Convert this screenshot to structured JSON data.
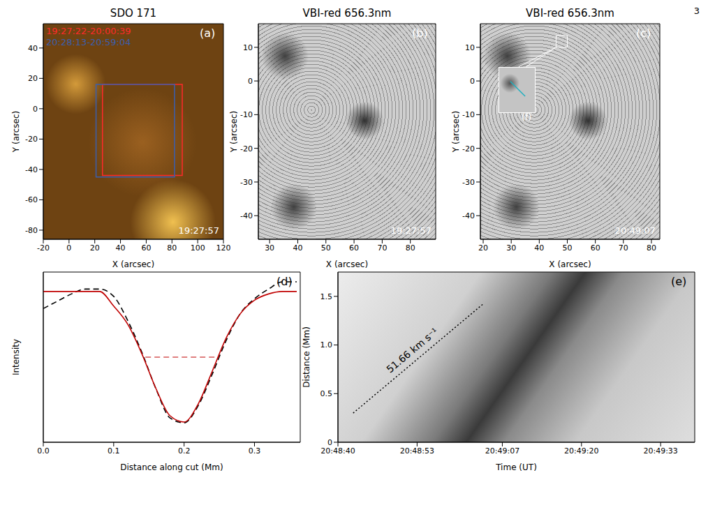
{
  "page_number": 3,
  "chart_data": [
    {
      "type": "image",
      "panel": "(a)",
      "title": "SDO 171",
      "x_label": "X (arcsec)",
      "y_label": "Y (arcsec)",
      "xlim": [
        -20,
        120
      ],
      "xticks": [
        -20,
        0,
        20,
        40,
        60,
        80,
        100,
        120
      ],
      "ylim": [
        -86,
        56
      ],
      "yticks": [
        -80,
        -60,
        -40,
        -20,
        0,
        20,
        40
      ],
      "timestamp": "19:27:57",
      "boxes": [
        {
          "name": "19:27:22-20:00:39",
          "color": "#ff2a2a",
          "x": [
            26,
            88
          ],
          "y": [
            -44,
            16
          ]
        },
        {
          "name": "20:28:13-20:59:04",
          "color": "#3a5fb0",
          "x": [
            21,
            82
          ],
          "y": [
            -45,
            16
          ]
        }
      ]
    },
    {
      "type": "image",
      "panel": "(b)",
      "title": "VBI-red 656.3nm",
      "x_label": "X (arcsec)",
      "y_label": "Y (arcsec)",
      "xlim": [
        26,
        89
      ],
      "xticks": [
        30,
        40,
        50,
        60,
        70,
        80
      ],
      "ylim": [
        -47,
        17
      ],
      "yticks": [
        -40,
        -30,
        -20,
        -10,
        0,
        10
      ],
      "timestamp": "19:27:57"
    },
    {
      "type": "image",
      "panel": "(c)",
      "title": "VBI-red 656.3nm",
      "x_label": "X (arcsec)",
      "y_label": "Y (arcsec)",
      "xlim": [
        19,
        83
      ],
      "xticks": [
        20,
        30,
        40,
        50,
        60,
        70,
        80
      ],
      "ylim": [
        -47,
        17
      ],
      "yticks": [
        -40,
        -30,
        -20,
        -10,
        0,
        10
      ],
      "timestamp": "20:49:07",
      "inset": "(f)",
      "box": {
        "color": "#ffffff",
        "x": [
          46,
          50
        ],
        "y": [
          10,
          13.5
        ]
      }
    },
    {
      "type": "line",
      "panel": "(d)",
      "x_label": "Distance along cut (Mm)",
      "y_label": "Intensity",
      "xlim": [
        0,
        0.365
      ],
      "xticks": [
        {
          "value": 0,
          "label": "0.0"
        },
        0.1,
        0.2,
        0.3
      ],
      "ylim": [
        0.2,
        0.9
      ],
      "tick_labels": "x",
      "x": [
        0,
        0.02,
        0.04,
        0.06,
        0.08,
        0.1,
        0.12,
        0.14,
        0.16,
        0.18,
        0.2,
        0.22,
        0.24,
        0.26,
        0.28,
        0.3,
        0.32,
        0.34,
        0.36
      ],
      "series": [
        {
          "color": "#000000",
          "line_style": "dashed",
          "values": [
            0.75,
            0.78,
            0.81,
            0.83,
            0.83,
            0.8,
            0.7,
            0.57,
            0.42,
            0.3,
            0.28,
            0.35,
            0.48,
            0.62,
            0.73,
            0.79,
            0.83,
            0.86,
            0.86
          ]
        },
        {
          "color": "#c00000",
          "line_style": "solid",
          "values": [
            0.82,
            0.82,
            0.82,
            0.82,
            0.82,
            0.76,
            0.685,
            0.564,
            0.421,
            0.309,
            0.283,
            0.357,
            0.492,
            0.63,
            0.729,
            0.784,
            0.81,
            0.82,
            0.82
          ]
        }
      ],
      "half_maximum": {
        "y": 0.55,
        "x": [
          0.145,
          0.25
        ],
        "color": "#c00000",
        "line_style": "dashed"
      }
    },
    {
      "type": "image",
      "panel": "(e)",
      "x_label": "Time (UT)",
      "y_label": "Distance (Mm)",
      "xlim": [
        0,
        58.6
      ],
      "xticks": [
        {
          "value": 0,
          "label": "20:48:40"
        },
        {
          "value": 13,
          "label": "20:48:53"
        },
        {
          "value": 27,
          "label": "20:49:07"
        },
        {
          "value": 40,
          "label": "20:49:20"
        },
        {
          "value": 53,
          "label": "20:49:33"
        }
      ],
      "ylim": [
        0,
        1.75
      ],
      "yticks": [
        0,
        0.5,
        {
          "value": 1,
          "label": "1.0"
        },
        1.5
      ],
      "fit_line": {
        "x": [
          2.5,
          24
        ],
        "y": [
          0.3,
          1.43
        ],
        "label": "51.66 km s⁻¹",
        "line_style": "dotted",
        "color": "#000000"
      }
    }
  ]
}
